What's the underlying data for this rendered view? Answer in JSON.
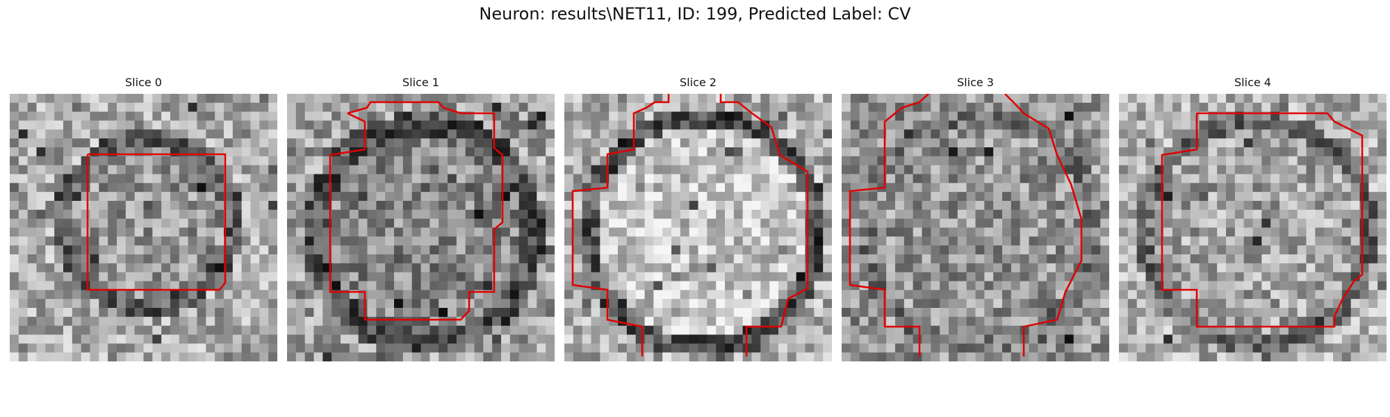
{
  "figure": {
    "title": "Neuron: results\\NET11, ID: 199, Predicted Label: CV"
  },
  "slices": [
    {
      "label": "Slice 0"
    },
    {
      "label": "Slice 1"
    },
    {
      "label": "Slice 2"
    },
    {
      "label": "Slice 3"
    },
    {
      "label": "Slice 4"
    }
  ],
  "colors": {
    "contour": "#e00000",
    "background": "#ffffff"
  }
}
